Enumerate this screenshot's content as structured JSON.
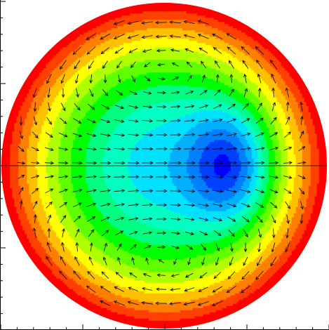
{
  "figure": {
    "colormap": [
      "#0000ff",
      "#0040ff",
      "#0080ff",
      "#00b0ff",
      "#00e0ff",
      "#00ffc0",
      "#00ff80",
      "#00ff00",
      "#60ff00",
      "#b0ff00",
      "#ffff00",
      "#ffc000",
      "#ff8000",
      "#ff4000",
      "#ff0000"
    ]
  }
}
